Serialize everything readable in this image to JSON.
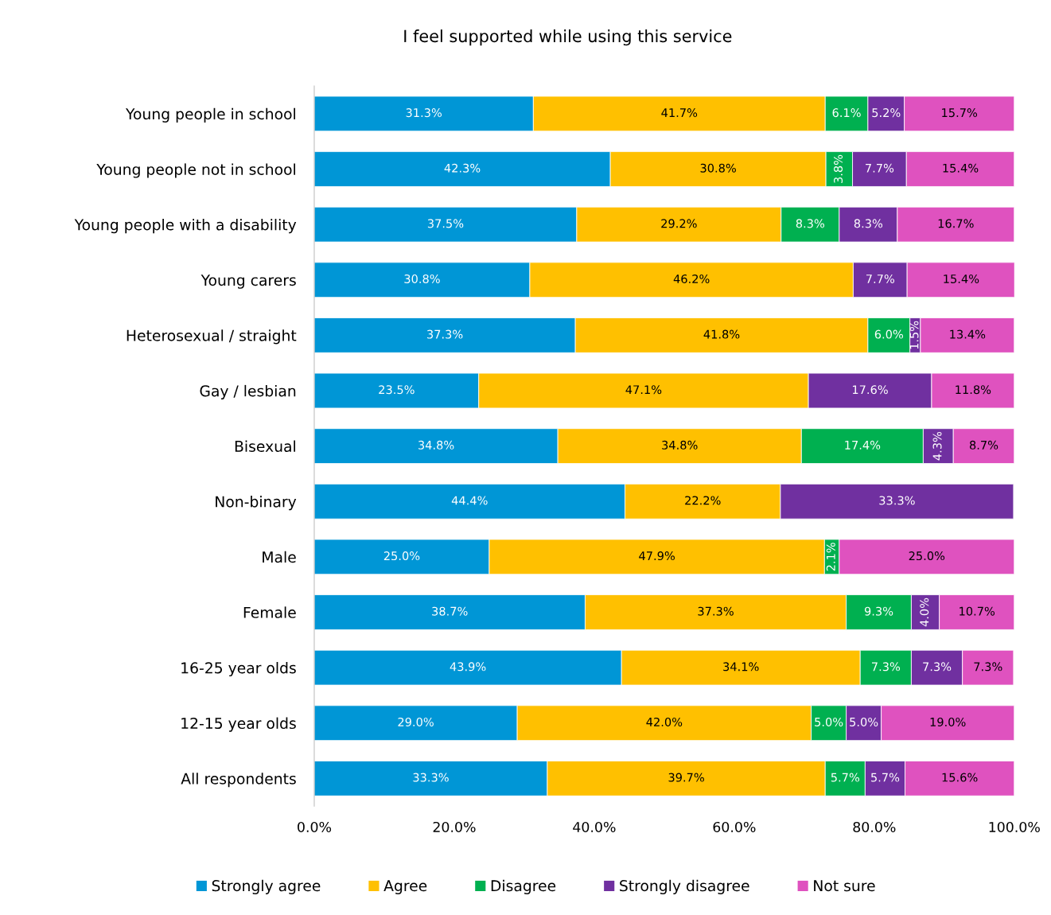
{
  "chart_data": {
    "type": "bar",
    "orientation": "horizontal",
    "stacked": true,
    "title": "I feel supported while using this service",
    "categories": [
      "Young people in school",
      "Young people not in school",
      "Young people with a disability",
      "Young carers",
      "Heterosexual / straight",
      "Gay / lesbian",
      "Bisexual",
      "Non-binary",
      "Male",
      "Female",
      "16-25 year olds",
      "12-15 year olds",
      "All respondents"
    ],
    "series": [
      {
        "name": "Strongly agree",
        "color": "#0096d6",
        "values": [
          31.3,
          42.3,
          37.5,
          30.8,
          37.3,
          23.5,
          34.8,
          44.4,
          25.0,
          38.7,
          43.9,
          29.0,
          33.3
        ],
        "value_labels": [
          "31.3%",
          "42.3%",
          "37.5%",
          "30.8%",
          "37.3%",
          "23.5%",
          "34.8%",
          "44.4%",
          "25.0%",
          "38.7%",
          "43.9%",
          "29.0%",
          "33.3%"
        ]
      },
      {
        "name": "Agree",
        "color": "#ffc000",
        "values": [
          41.7,
          30.8,
          29.2,
          46.2,
          41.8,
          47.1,
          34.8,
          22.2,
          47.9,
          37.3,
          34.1,
          42.0,
          39.7
        ],
        "value_labels": [
          "41.7%",
          "30.8%",
          "29.2%",
          "46.2%",
          "41.8%",
          "47.1%",
          "34.8%",
          "22.2%",
          "47.9%",
          "37.3%",
          "34.1%",
          "42.0%",
          "39.7%"
        ]
      },
      {
        "name": "Disagree",
        "color": "#00b050",
        "values": [
          6.1,
          3.8,
          8.3,
          null,
          6.0,
          null,
          17.4,
          null,
          2.1,
          9.3,
          7.3,
          5.0,
          5.7
        ],
        "value_labels": [
          "6.1%",
          "3.8%",
          "8.3%",
          null,
          "6.0%",
          null,
          "17.4%",
          null,
          "2.1%",
          "9.3%",
          "7.3%",
          "5.0%",
          "5.7%"
        ]
      },
      {
        "name": "Strongly disagree",
        "color": "#7030a0",
        "values": [
          5.2,
          7.7,
          8.3,
          7.7,
          1.5,
          17.6,
          4.3,
          33.3,
          null,
          4.0,
          7.3,
          5.0,
          5.7
        ],
        "value_labels": [
          "5.2%",
          "7.7%",
          "8.3%",
          "7.7%",
          "1.5%",
          "17.6%",
          "4.3%",
          "33.3%",
          null,
          "4.0%",
          "7.3%",
          "5.0%",
          "5.7%"
        ]
      },
      {
        "name": "Not sure",
        "color": "#df52bf",
        "values": [
          15.7,
          15.4,
          16.7,
          15.4,
          13.4,
          11.8,
          8.7,
          null,
          25.0,
          10.7,
          7.3,
          19.0,
          15.6
        ],
        "value_labels": [
          "15.7%",
          "15.4%",
          "16.7%",
          "15.4%",
          "13.4%",
          "11.8%",
          "8.7%",
          null,
          "25.0%",
          "10.7%",
          "7.3%",
          "19.0%",
          "15.6%"
        ]
      }
    ],
    "xlim": [
      0,
      100
    ],
    "xticks": [
      {
        "value": 0,
        "label": "0.0%"
      },
      {
        "value": 20,
        "label": "20.0%"
      },
      {
        "value": 40,
        "label": "40.0%"
      },
      {
        "value": 60,
        "label": "60.0%"
      },
      {
        "value": 80,
        "label": "80.0%"
      },
      {
        "value": 100,
        "label": "100.0%"
      }
    ],
    "legend": "bottom"
  }
}
